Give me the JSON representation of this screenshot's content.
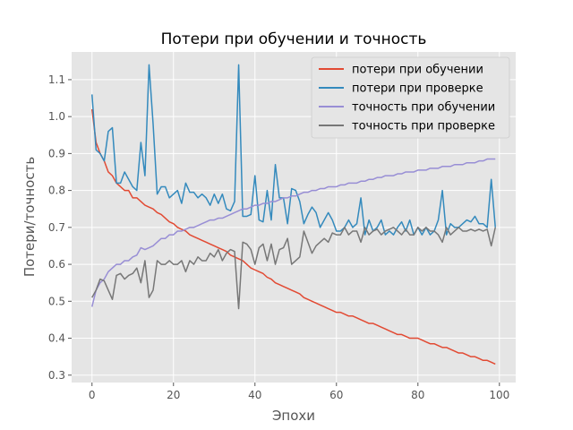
{
  "chart_data": {
    "type": "line",
    "title": "Потери при обучении и точность",
    "xlabel": "Эпохи",
    "ylabel": "Потери/точность",
    "xlim": [
      -5,
      104
    ],
    "ylim": [
      0.28,
      1.175
    ],
    "xticks": [
      0,
      20,
      40,
      60,
      80,
      100
    ],
    "yticks": [
      0.3,
      0.4,
      0.5,
      0.6,
      0.7,
      0.8,
      0.9,
      1.0,
      1.1
    ],
    "grid": true,
    "legend_position": "top-right",
    "series": [
      {
        "name": "потери при обучении",
        "color": "#E24A33",
        "values": [
          1.02,
          0.93,
          0.9,
          0.88,
          0.85,
          0.84,
          0.82,
          0.81,
          0.8,
          0.8,
          0.78,
          0.78,
          0.77,
          0.76,
          0.755,
          0.75,
          0.74,
          0.735,
          0.725,
          0.715,
          0.71,
          0.7,
          0.695,
          0.69,
          0.68,
          0.675,
          0.67,
          0.665,
          0.66,
          0.655,
          0.65,
          0.645,
          0.64,
          0.635,
          0.625,
          0.62,
          0.615,
          0.61,
          0.6,
          0.59,
          0.585,
          0.58,
          0.575,
          0.565,
          0.56,
          0.55,
          0.545,
          0.54,
          0.535,
          0.53,
          0.525,
          0.52,
          0.51,
          0.505,
          0.5,
          0.495,
          0.49,
          0.485,
          0.48,
          0.475,
          0.47,
          0.47,
          0.465,
          0.46,
          0.46,
          0.455,
          0.45,
          0.445,
          0.44,
          0.44,
          0.435,
          0.43,
          0.425,
          0.42,
          0.415,
          0.41,
          0.41,
          0.405,
          0.4,
          0.4,
          0.4,
          0.395,
          0.39,
          0.385,
          0.385,
          0.38,
          0.375,
          0.375,
          0.37,
          0.365,
          0.36,
          0.36,
          0.355,
          0.35,
          0.35,
          0.345,
          0.34,
          0.34,
          0.335,
          0.33
        ]
      },
      {
        "name": "потери при проверке",
        "color": "#348ABD",
        "values": [
          1.06,
          0.91,
          0.9,
          0.88,
          0.96,
          0.97,
          0.82,
          0.82,
          0.85,
          0.83,
          0.81,
          0.8,
          0.93,
          0.84,
          1.14,
          0.98,
          0.79,
          0.81,
          0.81,
          0.78,
          0.79,
          0.8,
          0.765,
          0.82,
          0.795,
          0.795,
          0.78,
          0.79,
          0.78,
          0.76,
          0.79,
          0.765,
          0.79,
          0.75,
          0.745,
          0.77,
          1.14,
          0.73,
          0.73,
          0.735,
          0.84,
          0.72,
          0.715,
          0.8,
          0.72,
          0.87,
          0.78,
          0.78,
          0.71,
          0.805,
          0.8,
          0.77,
          0.71,
          0.735,
          0.755,
          0.74,
          0.7,
          0.72,
          0.74,
          0.72,
          0.69,
          0.69,
          0.7,
          0.72,
          0.7,
          0.71,
          0.78,
          0.68,
          0.72,
          0.69,
          0.7,
          0.72,
          0.68,
          0.69,
          0.68,
          0.7,
          0.715,
          0.69,
          0.72,
          0.68,
          0.7,
          0.68,
          0.7,
          0.68,
          0.69,
          0.72,
          0.8,
          0.68,
          0.71,
          0.7,
          0.7,
          0.71,
          0.72,
          0.715,
          0.73,
          0.71,
          0.71,
          0.7,
          0.83,
          0.7
        ]
      },
      {
        "name": "точность при обучении",
        "color": "#988ED5",
        "values": [
          0.485,
          0.53,
          0.55,
          0.56,
          0.58,
          0.59,
          0.6,
          0.6,
          0.61,
          0.61,
          0.62,
          0.625,
          0.645,
          0.64,
          0.645,
          0.65,
          0.66,
          0.67,
          0.67,
          0.68,
          0.68,
          0.69,
          0.69,
          0.695,
          0.7,
          0.7,
          0.705,
          0.71,
          0.715,
          0.72,
          0.72,
          0.725,
          0.725,
          0.73,
          0.735,
          0.74,
          0.745,
          0.75,
          0.75,
          0.755,
          0.76,
          0.76,
          0.765,
          0.765,
          0.77,
          0.77,
          0.775,
          0.78,
          0.78,
          0.785,
          0.785,
          0.79,
          0.795,
          0.795,
          0.8,
          0.8,
          0.805,
          0.805,
          0.81,
          0.81,
          0.81,
          0.815,
          0.815,
          0.82,
          0.82,
          0.82,
          0.825,
          0.825,
          0.83,
          0.83,
          0.835,
          0.835,
          0.84,
          0.84,
          0.84,
          0.845,
          0.845,
          0.85,
          0.85,
          0.85,
          0.855,
          0.855,
          0.855,
          0.86,
          0.86,
          0.86,
          0.865,
          0.865,
          0.865,
          0.87,
          0.87,
          0.87,
          0.875,
          0.875,
          0.875,
          0.88,
          0.88,
          0.885,
          0.885,
          0.885
        ]
      },
      {
        "name": "точность при проверке",
        "color": "#777777",
        "values": [
          0.51,
          0.53,
          0.56,
          0.555,
          0.53,
          0.505,
          0.57,
          0.575,
          0.56,
          0.57,
          0.575,
          0.59,
          0.55,
          0.61,
          0.51,
          0.53,
          0.61,
          0.6,
          0.6,
          0.61,
          0.6,
          0.6,
          0.61,
          0.58,
          0.61,
          0.6,
          0.62,
          0.61,
          0.61,
          0.63,
          0.62,
          0.64,
          0.61,
          0.63,
          0.64,
          0.635,
          0.48,
          0.66,
          0.655,
          0.64,
          0.6,
          0.645,
          0.655,
          0.61,
          0.655,
          0.6,
          0.64,
          0.645,
          0.67,
          0.6,
          0.61,
          0.62,
          0.69,
          0.66,
          0.63,
          0.65,
          0.66,
          0.67,
          0.66,
          0.685,
          0.68,
          0.68,
          0.7,
          0.68,
          0.69,
          0.69,
          0.66,
          0.7,
          0.68,
          0.69,
          0.695,
          0.68,
          0.69,
          0.695,
          0.7,
          0.69,
          0.68,
          0.695,
          0.68,
          0.68,
          0.7,
          0.69,
          0.7,
          0.69,
          0.69,
          0.68,
          0.66,
          0.7,
          0.68,
          0.69,
          0.7,
          0.69,
          0.69,
          0.695,
          0.69,
          0.695,
          0.69,
          0.695,
          0.65,
          0.7
        ]
      }
    ]
  }
}
